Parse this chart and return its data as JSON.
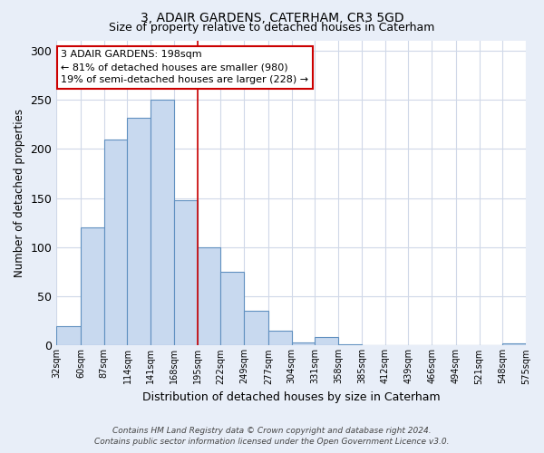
{
  "title": "3, ADAIR GARDENS, CATERHAM, CR3 5GD",
  "subtitle": "Size of property relative to detached houses in Caterham",
  "xlabel": "Distribution of detached houses by size in Caterham",
  "ylabel": "Number of detached properties",
  "bar_color": "#c8d9ef",
  "bar_edge_color": "#6090c0",
  "background_color": "#e8eef8",
  "plot_bg_color": "#ffffff",
  "grid_color": "#d0d8e8",
  "bins": [
    32,
    60,
    87,
    114,
    141,
    168,
    195,
    222,
    249,
    277,
    304,
    331,
    358,
    385,
    412,
    439,
    466,
    494,
    521,
    548,
    575
  ],
  "counts": [
    20,
    120,
    210,
    232,
    250,
    148,
    100,
    75,
    35,
    15,
    3,
    9,
    1,
    0,
    0,
    0,
    0,
    0,
    0,
    2
  ],
  "tick_labels": [
    "32sqm",
    "60sqm",
    "87sqm",
    "114sqm",
    "141sqm",
    "168sqm",
    "195sqm",
    "222sqm",
    "249sqm",
    "277sqm",
    "304sqm",
    "331sqm",
    "358sqm",
    "385sqm",
    "412sqm",
    "439sqm",
    "466sqm",
    "494sqm",
    "521sqm",
    "548sqm",
    "575sqm"
  ],
  "ylim": [
    0,
    310
  ],
  "yticks": [
    0,
    50,
    100,
    150,
    200,
    250,
    300
  ],
  "vline_x": 195,
  "vline_color": "#cc0000",
  "annotation_title": "3 ADAIR GARDENS: 198sqm",
  "annotation_line1": "← 81% of detached houses are smaller (980)",
  "annotation_line2": "19% of semi-detached houses are larger (228) →",
  "annotation_box_color": "#cc0000",
  "footer_line1": "Contains HM Land Registry data © Crown copyright and database right 2024.",
  "footer_line2": "Contains public sector information licensed under the Open Government Licence v3.0."
}
